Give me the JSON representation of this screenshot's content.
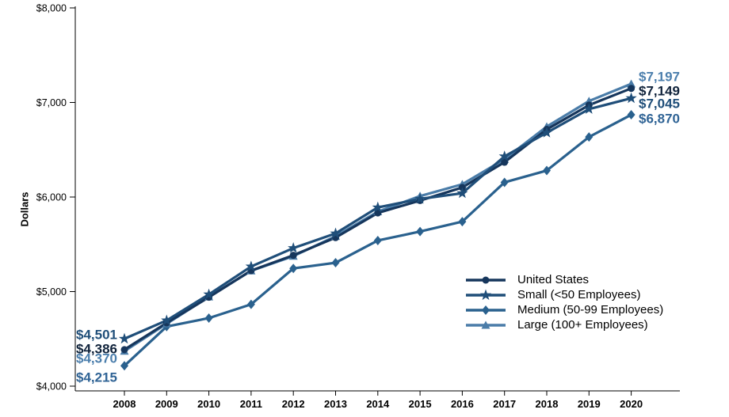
{
  "chart_data": {
    "type": "line",
    "title": "",
    "xlabel": "",
    "ylabel": "Dollars",
    "x": [
      2008,
      2009,
      2010,
      2011,
      2012,
      2013,
      2014,
      2015,
      2016,
      2017,
      2018,
      2019,
      2020
    ],
    "ylim": [
      4000,
      8000
    ],
    "ytick_step": 1000,
    "ytick_labels": [
      "$4,000",
      "$5,000",
      "$6,000",
      "$7,000",
      "$8,000"
    ],
    "grid": false,
    "legend_position": "lower right",
    "series": [
      {
        "name": "United States",
        "marker": "circle",
        "color": "#16365C",
        "label_color": "#10233B",
        "start_label": "$4,386",
        "end_label": "$7,149",
        "values": [
          4386,
          4669,
          4940,
          5222,
          5384,
          5571,
          5832,
          5963,
          6101,
          6368,
          6715,
          6972,
          7149
        ]
      },
      {
        "name": "Small (<50 Employees)",
        "marker": "star",
        "color": "#1F4E79",
        "label_color": "#1F4E79",
        "start_label": "$4,501",
        "end_label": "$7,045",
        "values": [
          4501,
          4695,
          4970,
          5265,
          5460,
          5615,
          5890,
          5980,
          6040,
          6430,
          6680,
          6930,
          7045
        ]
      },
      {
        "name": "Medium (50-99 Employees)",
        "marker": "diamond",
        "color": "#2A618E",
        "label_color": "#2F6395",
        "start_label": "$4,215",
        "end_label": "$6,870",
        "values": [
          4215,
          4630,
          4720,
          4865,
          5245,
          5305,
          5540,
          5635,
          5740,
          6155,
          6280,
          6635,
          6870
        ]
      },
      {
        "name": "Large (100+ Employees)",
        "marker": "triangle",
        "color": "#4A7CA8",
        "label_color": "#4C7FAD",
        "start_label": "$4,370",
        "end_label": "$7,197",
        "values": [
          4370,
          4660,
          4945,
          5220,
          5375,
          5585,
          5845,
          6010,
          6135,
          6400,
          6745,
          7015,
          7197
        ]
      }
    ]
  }
}
